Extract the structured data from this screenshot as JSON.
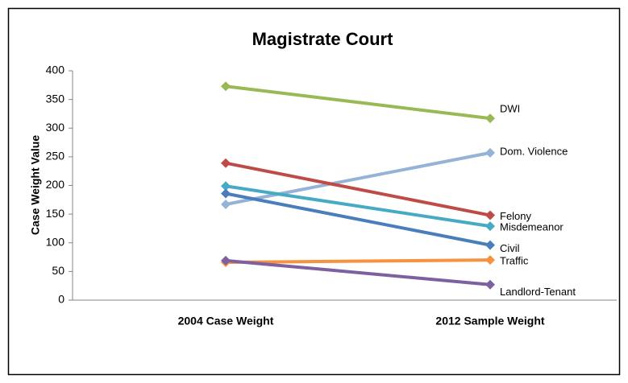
{
  "chart_data": {
    "type": "line",
    "title": "Magistrate Court",
    "y_label": "Case Weight Value",
    "categories": [
      "2004 Case Weight",
      "2012 Sample Weight"
    ],
    "series": [
      {
        "name": "DWI",
        "color": "#98b954",
        "values": [
          373,
          317
        ]
      },
      {
        "name": "Dom. Violence",
        "color": "#95b3d7",
        "values": [
          167,
          257
        ]
      },
      {
        "name": "Felony",
        "color": "#be4b48",
        "values": [
          239,
          148
        ]
      },
      {
        "name": "Misdemeanor",
        "color": "#46aac5",
        "values": [
          199,
          129
        ]
      },
      {
        "name": "Civil",
        "color": "#4a7ebb",
        "values": [
          186,
          96
        ]
      },
      {
        "name": "Traffic",
        "color": "#f69240",
        "values": [
          66,
          70
        ]
      },
      {
        "name": "Landlord-Tenant",
        "color": "#7d60a0",
        "values": [
          69,
          27
        ]
      }
    ],
    "ylim": [
      0,
      400
    ],
    "yticks": [
      0,
      50,
      100,
      150,
      200,
      250,
      300,
      350,
      400
    ],
    "grid": false
  }
}
